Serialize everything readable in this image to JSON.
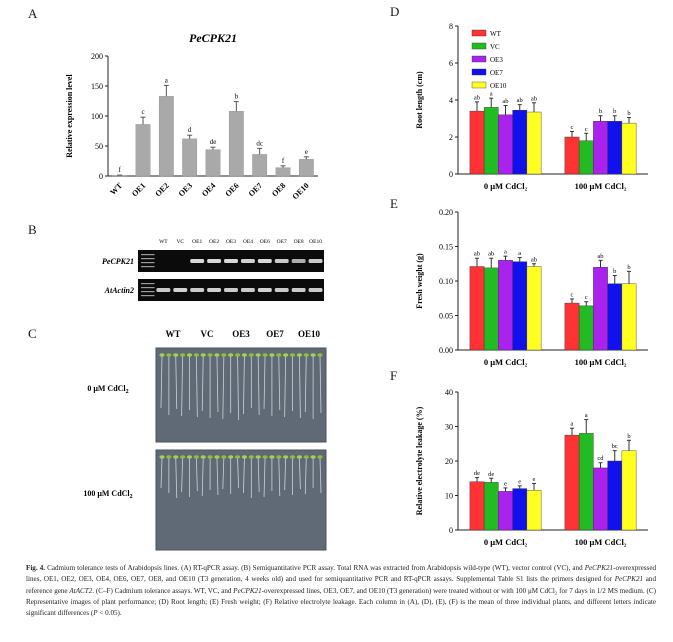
{
  "panels": {
    "A": "A",
    "B": "B",
    "C": "C",
    "D": "D",
    "E": "E",
    "F": "F"
  },
  "colors": {
    "WT": "#ff3333",
    "VC": "#22bb22",
    "OE3": "#aa22ee",
    "OE7": "#1111ee",
    "OE10": "#ffff22",
    "grey_bar": "#a9a9a9"
  },
  "chart_data": [
    {
      "id": "A",
      "type": "bar",
      "title": "PeCPK21",
      "ylabel": "Relative expression level",
      "ylim": [
        0,
        200
      ],
      "yticks": [
        0,
        50,
        100,
        150,
        200
      ],
      "categories": [
        "WT",
        "OE1",
        "OE2",
        "OE3",
        "OE4",
        "OE6",
        "OE7",
        "OE8",
        "OE10"
      ],
      "values": [
        1,
        86,
        133,
        62,
        44,
        108,
        36,
        14,
        28
      ],
      "errors": [
        0.5,
        12,
        18,
        6,
        4,
        16,
        10,
        3,
        4
      ],
      "letters": [
        "f",
        "c",
        "a",
        "d",
        "de",
        "b",
        "dc",
        "f",
        "e"
      ]
    },
    {
      "id": "D",
      "type": "bar",
      "ylabel": "Root length (cm)",
      "ylim": [
        0,
        8
      ],
      "yticks": [
        0,
        2,
        4,
        6,
        8
      ],
      "groups": [
        "0 μM CdCl₂",
        "100 μM CdCl₂"
      ],
      "legend": [
        "WT",
        "VC",
        "OE3",
        "OE7",
        "OE10"
      ],
      "series": [
        {
          "name": "WT",
          "values": [
            3.4,
            2.0
          ],
          "errors": [
            0.5,
            0.3
          ],
          "letters": [
            "ab",
            "c"
          ]
        },
        {
          "name": "VC",
          "values": [
            3.6,
            1.8
          ],
          "errors": [
            0.5,
            0.4
          ],
          "letters": [
            "a",
            "c"
          ]
        },
        {
          "name": "OE3",
          "values": [
            3.2,
            2.85
          ],
          "errors": [
            0.5,
            0.3
          ],
          "letters": [
            "ab",
            "b"
          ]
        },
        {
          "name": "OE7",
          "values": [
            3.45,
            2.85
          ],
          "errors": [
            0.3,
            0.3
          ],
          "letters": [
            "ab",
            "b"
          ]
        },
        {
          "name": "OE10",
          "values": [
            3.35,
            2.75
          ],
          "errors": [
            0.5,
            0.3
          ],
          "letters": [
            "ab",
            "b"
          ]
        }
      ]
    },
    {
      "id": "E",
      "type": "bar",
      "ylabel": "Fresh weight (g)",
      "ylim": [
        0,
        0.2
      ],
      "yticks": [
        "0.00",
        "0.05",
        "0.10",
        "0.15",
        "0.20"
      ],
      "groups": [
        "0 μM CdCl₂",
        "100 μM CdCl₂"
      ],
      "series": [
        {
          "name": "WT",
          "values": [
            0.121,
            0.068
          ],
          "errors": [
            0.012,
            0.006
          ],
          "letters": [
            "ab",
            "c"
          ]
        },
        {
          "name": "VC",
          "values": [
            0.119,
            0.064
          ],
          "errors": [
            0.014,
            0.006
          ],
          "letters": [
            "ab",
            "c"
          ]
        },
        {
          "name": "OE3",
          "values": [
            0.13,
            0.12
          ],
          "errors": [
            0.006,
            0.01
          ],
          "letters": [
            "a",
            "ab"
          ]
        },
        {
          "name": "OE7",
          "values": [
            0.128,
            0.096
          ],
          "errors": [
            0.006,
            0.012
          ],
          "letters": [
            "a",
            "b"
          ]
        },
        {
          "name": "OE10",
          "values": [
            0.121,
            0.096
          ],
          "errors": [
            0.004,
            0.018
          ],
          "letters": [
            "ab",
            "b"
          ]
        }
      ]
    },
    {
      "id": "F",
      "type": "bar",
      "ylabel": "Relative electrolyte leakage (%)",
      "ylim": [
        0,
        40
      ],
      "yticks": [
        0,
        10,
        20,
        30,
        40
      ],
      "groups": [
        "0 μM CdCl₂",
        "100 μM CdCl₂"
      ],
      "series": [
        {
          "name": "WT",
          "values": [
            14.0,
            27.5
          ],
          "errors": [
            1.2,
            2.0
          ],
          "letters": [
            "de",
            "a"
          ]
        },
        {
          "name": "VC",
          "values": [
            13.8,
            28.0
          ],
          "errors": [
            1.2,
            4.0
          ],
          "letters": [
            "de",
            "a"
          ]
        },
        {
          "name": "OE3",
          "values": [
            11.2,
            18.0
          ],
          "errors": [
            1.0,
            1.5
          ],
          "letters": [
            "e",
            "cd"
          ]
        },
        {
          "name": "OE7",
          "values": [
            12.0,
            20.0
          ],
          "errors": [
            0.8,
            3.0
          ],
          "letters": [
            "e",
            "bc"
          ]
        },
        {
          "name": "OE10",
          "values": [
            11.5,
            23.0
          ],
          "errors": [
            2.0,
            3.0
          ],
          "letters": [
            "e",
            "b"
          ]
        }
      ]
    }
  ],
  "gel": {
    "lanes": [
      "WT",
      "VC",
      "OE1",
      "OE2",
      "OE3",
      "OE4",
      "OE6",
      "OE7",
      "OE8",
      "OE10"
    ],
    "row1_label": "PeCPK21",
    "row2_label": "AtActin2",
    "row1_intensity": [
      0,
      0,
      0.9,
      0.9,
      0.9,
      0.85,
      0.9,
      0.8,
      0.6,
      0.8
    ],
    "row2_intensity": [
      0.8,
      0.85,
      0.8,
      0.85,
      0.8,
      0.8,
      0.85,
      0.8,
      0.8,
      0.8
    ]
  },
  "photo": {
    "column_labels": [
      "WT",
      "VC",
      "OE3",
      "OE7",
      "OE10"
    ],
    "row1_label": "0 μM CdCl",
    "row2_label": "100 μM CdCl",
    "sub": "2"
  },
  "caption": {
    "fig": "Fig. 4.",
    "c1": " Cadmium tolerance tests of Arabidopsis lines. (A) RT-qPCR assay. (B) Semiquantitative PCR assay. Total RNA was extracted from Arabidopsis wild-type (WT), vector control (VC), and ",
    "g1": "PeCPK21",
    "c2": "-overexpressed lines, OE1, OE2, OE3, OE4, OE6, OE7, OE8, and OE10 (T3 generation, 4 weeks old) and used for semiquantitative PCR and RT-qPCR assays. Supplemental Table S1 lists the primers designed for ",
    "g2": "PeCPK21",
    "c3": " and reference gene ",
    "g3": "AtACT2",
    "c4": ". (C–F) Cadmium tolerance assays. WT, VC, and ",
    "g4": "PeCPK21",
    "c5": "-overexpressed lines, OE3, OE7, and OE10 (T3 generation) were treated without or with 100 μM CdCl₂ for 7 days in 1/2 MS medium. (C) Representative images of plant performance; (D) Root length; (E) Fresh weight; (F) Relative electrolyte leakage. Each column in (A), (D), (E), (F) is the mean of three individual plants, and different letters indicate significant differences (",
    "g5": "P",
    "c6": " < 0.05)."
  }
}
